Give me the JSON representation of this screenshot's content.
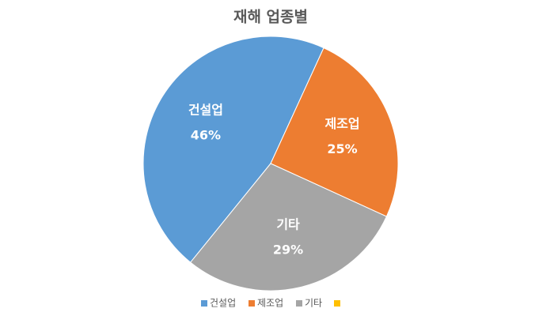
{
  "chart_data": {
    "type": "pie",
    "title": "재해 업종별",
    "categories": [
      "건설업",
      "제조업",
      "기타",
      null
    ],
    "values": [
      46,
      25,
      29,
      0
    ],
    "value_labels": [
      "46%",
      "25%",
      "29%",
      null
    ],
    "colors": [
      "#5b9bd5",
      "#ed7d31",
      "#a5a5a5",
      "#ffc000"
    ],
    "legend": "bottom"
  }
}
